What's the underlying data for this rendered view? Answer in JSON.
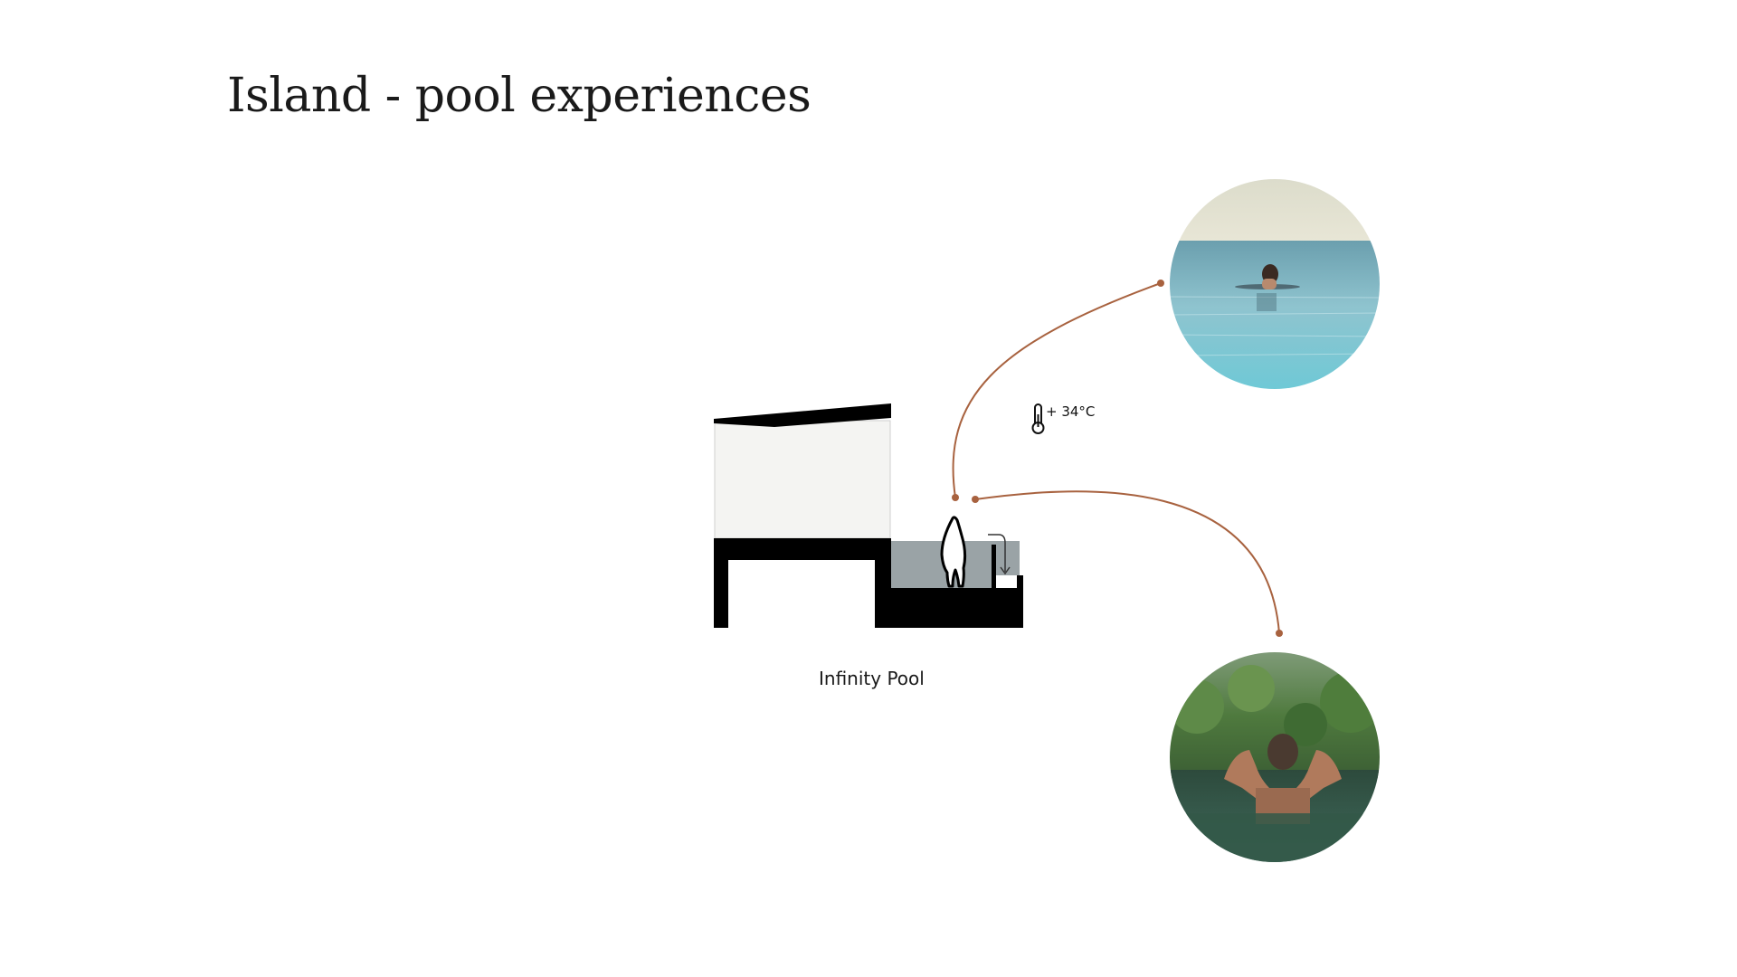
{
  "page": {
    "title": "Island - pool experiences"
  },
  "diagram": {
    "caption": "Infinity Pool",
    "temperature": "+ 34°C",
    "icons": {
      "thermometer": "thermometer-icon",
      "person": "person-icon",
      "overflow_arrow": "arrow-icon"
    },
    "colors": {
      "connector": "#a8623f",
      "pool_water": "#9aa3a6",
      "structure": "#000000",
      "cabin_wall": "#f4f4f2"
    }
  },
  "photos": [
    {
      "subject": "woman-in-ocean-infinity-pool"
    },
    {
      "subject": "woman-in-jungle-infinity-pool"
    }
  ]
}
